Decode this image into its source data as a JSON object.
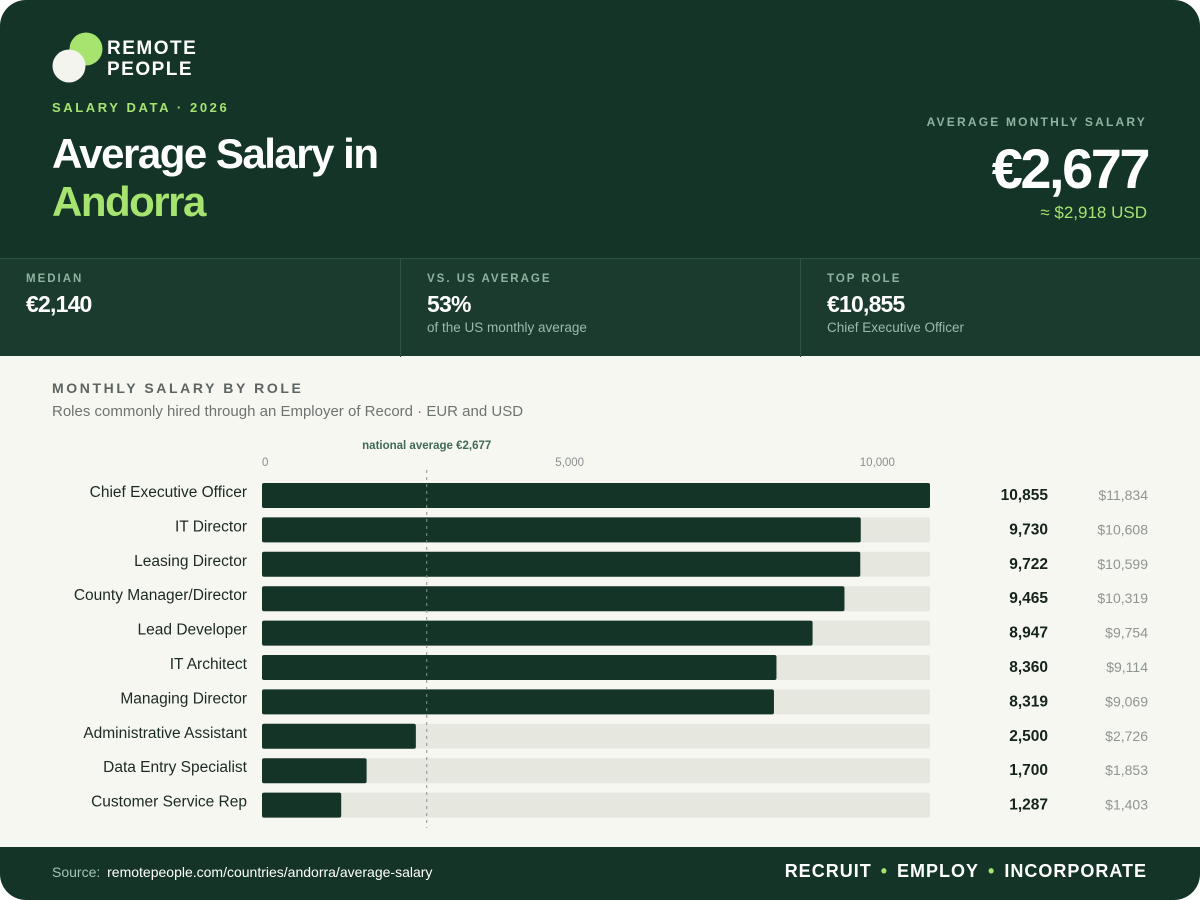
{
  "brand": {
    "name_line1": "REMOTE",
    "name_line2": "PEOPLE",
    "colors": {
      "dark": "#133427",
      "accent": "#a6e36f",
      "bar_track": "#e6e7de",
      "background": "#f7f7f2"
    }
  },
  "header": {
    "eyebrow": "SALARY DATA · 2026",
    "title_line1": "Average Salary in",
    "title_line2": "Andorra",
    "kpi_label": "AVERAGE MONTHLY SALARY",
    "kpi_value": "€2,677",
    "kpi_sub": "≈ $2,918 USD"
  },
  "stats": [
    {
      "label": "MEDIAN",
      "value": "€2,140",
      "note": ""
    },
    {
      "label": "VS. US AVERAGE",
      "value": "53%",
      "note": "of the US monthly average"
    },
    {
      "label": "TOP ROLE",
      "value": "€10,855",
      "note": "Chief Executive Officer"
    }
  ],
  "section": {
    "title": "MONTHLY SALARY BY ROLE",
    "subtitle": "Roles commonly hired through an Employer of Record · EUR and USD"
  },
  "chart_data": {
    "type": "bar",
    "orientation": "horizontal",
    "categories": [
      "Chief Executive Officer",
      "IT Director",
      "Leasing Director",
      "County Manager/Director",
      "Lead Developer",
      "IT Architect",
      "Managing Director",
      "Administrative Assistant",
      "Data Entry Specialist",
      "Customer Service Rep"
    ],
    "values": [
      10855,
      9730,
      9722,
      9465,
      8947,
      8360,
      8319,
      2500,
      1700,
      1287
    ],
    "value_labels": [
      "10,855",
      "9,730",
      "9,722",
      "9,465",
      "8,947",
      "8,360",
      "8,319",
      "2,500",
      "1,700",
      "1,287"
    ],
    "usd_labels": [
      "$11,834",
      "$10,608",
      "$10,599",
      "$10,319",
      "$9,754",
      "$9,114",
      "$9,069",
      "$2,726",
      "$1,853",
      "$1,403"
    ],
    "xlim": [
      0,
      10855
    ],
    "xticks": [
      0,
      5000,
      10000
    ],
    "xtick_labels": [
      "0",
      "5,000",
      "10,000"
    ],
    "reference_line": {
      "value": 2677,
      "label": "national average €2,677"
    },
    "grid": false,
    "legend": "none"
  },
  "footer": {
    "source_prefix": "Source:",
    "source_url": "remotepeople.com/countries/andorra/average-salary",
    "tag1": "RECRUIT",
    "tag2": "EMPLOY",
    "tag3": "INCORPORATE",
    "separator": "•"
  }
}
